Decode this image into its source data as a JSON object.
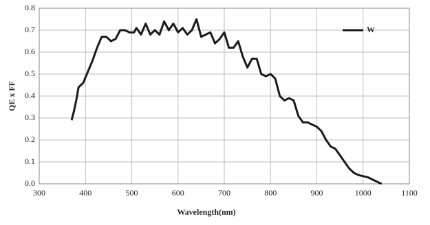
{
  "chart_data": {
    "type": "line",
    "xlabel": "Wavelength(nm)",
    "ylabel": "QE x FF",
    "x": [
      370,
      375,
      380,
      385,
      395,
      405,
      415,
      425,
      435,
      445,
      455,
      465,
      475,
      485,
      495,
      505,
      510,
      520,
      530,
      540,
      550,
      560,
      570,
      580,
      590,
      600,
      610,
      620,
      630,
      640,
      650,
      660,
      670,
      680,
      690,
      700,
      710,
      720,
      730,
      740,
      750,
      760,
      770,
      780,
      790,
      800,
      810,
      820,
      830,
      840,
      850,
      860,
      870,
      880,
      890,
      900,
      910,
      920,
      930,
      940,
      950,
      960,
      970,
      980,
      990,
      1000,
      1010,
      1020,
      1030,
      1040
    ],
    "series": [
      {
        "name": "W",
        "color": "#1a1a1a",
        "values": [
          0.29,
          0.33,
          0.38,
          0.44,
          0.46,
          0.51,
          0.56,
          0.62,
          0.67,
          0.67,
          0.65,
          0.66,
          0.7,
          0.7,
          0.69,
          0.69,
          0.71,
          0.68,
          0.73,
          0.68,
          0.7,
          0.68,
          0.74,
          0.7,
          0.73,
          0.69,
          0.71,
          0.68,
          0.7,
          0.75,
          0.67,
          0.68,
          0.69,
          0.64,
          0.66,
          0.69,
          0.62,
          0.62,
          0.65,
          0.58,
          0.53,
          0.57,
          0.57,
          0.5,
          0.49,
          0.5,
          0.48,
          0.4,
          0.38,
          0.39,
          0.38,
          0.31,
          0.28,
          0.28,
          0.27,
          0.26,
          0.24,
          0.2,
          0.17,
          0.16,
          0.13,
          0.1,
          0.07,
          0.05,
          0.04,
          0.035,
          0.03,
          0.02,
          0.01,
          0.0
        ]
      }
    ],
    "xlim": [
      300,
      1100
    ],
    "xticks": [
      300,
      400,
      500,
      600,
      700,
      800,
      900,
      1000,
      1100
    ],
    "ylim": [
      0,
      0.8
    ],
    "yticks": [
      {
        "value": 0,
        "label": "0.0"
      },
      0.1,
      0.2,
      0.3,
      0.4,
      0.5,
      0.6,
      0.7,
      0.8
    ],
    "grid": true,
    "legend": "upper right"
  }
}
